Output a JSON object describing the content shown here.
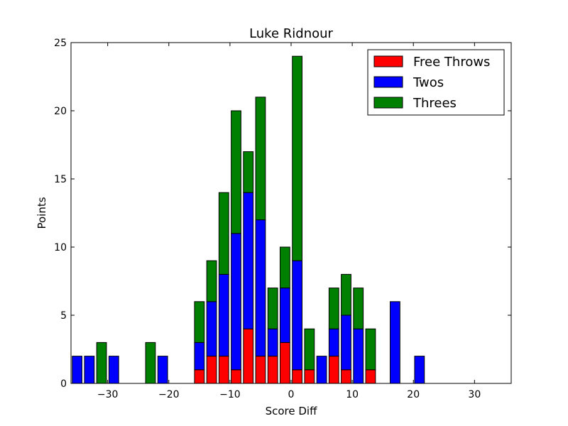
{
  "chart_data": {
    "type": "bar",
    "stacked": true,
    "title": "Luke Ridnour",
    "xlabel": "Score Diff",
    "ylabel": "Points",
    "xlim": [
      -36,
      36
    ],
    "ylim": [
      0,
      25
    ],
    "xticks": [
      -30,
      -20,
      -10,
      0,
      10,
      20,
      30
    ],
    "xtick_labels": [
      "−30",
      "−20",
      "−10",
      "0",
      "10",
      "20",
      "30"
    ],
    "yticks": [
      0,
      5,
      10,
      15,
      20,
      25
    ],
    "ytick_labels": [
      "0",
      "5",
      "10",
      "15",
      "20",
      "25"
    ],
    "bin_width": 2,
    "bar_width": 1.6,
    "grid": false,
    "legend_position": "top-right",
    "x": [
      -35,
      -33,
      -31,
      -29,
      -27,
      -25,
      -23,
      -21,
      -19,
      -17,
      -15,
      -13,
      -11,
      -9,
      -7,
      -5,
      -3,
      -1,
      1,
      3,
      5,
      7,
      9,
      11,
      13,
      15,
      17,
      19,
      21,
      23,
      25,
      27,
      29,
      31,
      33,
      35
    ],
    "series": [
      {
        "name": "Free Throws",
        "color": "#ff0000",
        "values": [
          0,
          0,
          0,
          0,
          0,
          0,
          0,
          0,
          0,
          0,
          1,
          2,
          2,
          1,
          4,
          2,
          2,
          3,
          1,
          1,
          0,
          2,
          1,
          0,
          1,
          0,
          0,
          0,
          0,
          0,
          0,
          0,
          0,
          0,
          0,
          0
        ]
      },
      {
        "name": "Twos",
        "color": "#0000ff",
        "values": [
          2,
          2,
          0,
          2,
          0,
          0,
          0,
          2,
          0,
          0,
          2,
          4,
          6,
          10,
          10,
          10,
          2,
          4,
          8,
          0,
          2,
          2,
          4,
          4,
          0,
          0,
          6,
          0,
          2,
          0,
          0,
          0,
          0,
          0,
          0,
          0
        ]
      },
      {
        "name": "Threes",
        "color": "#008000",
        "values": [
          0,
          0,
          3,
          0,
          0,
          0,
          3,
          0,
          0,
          0,
          3,
          3,
          6,
          9,
          3,
          9,
          3,
          3,
          15,
          3,
          0,
          3,
          3,
          3,
          3,
          0,
          0,
          0,
          0,
          0,
          0,
          0,
          0,
          0,
          0,
          0
        ]
      }
    ]
  }
}
